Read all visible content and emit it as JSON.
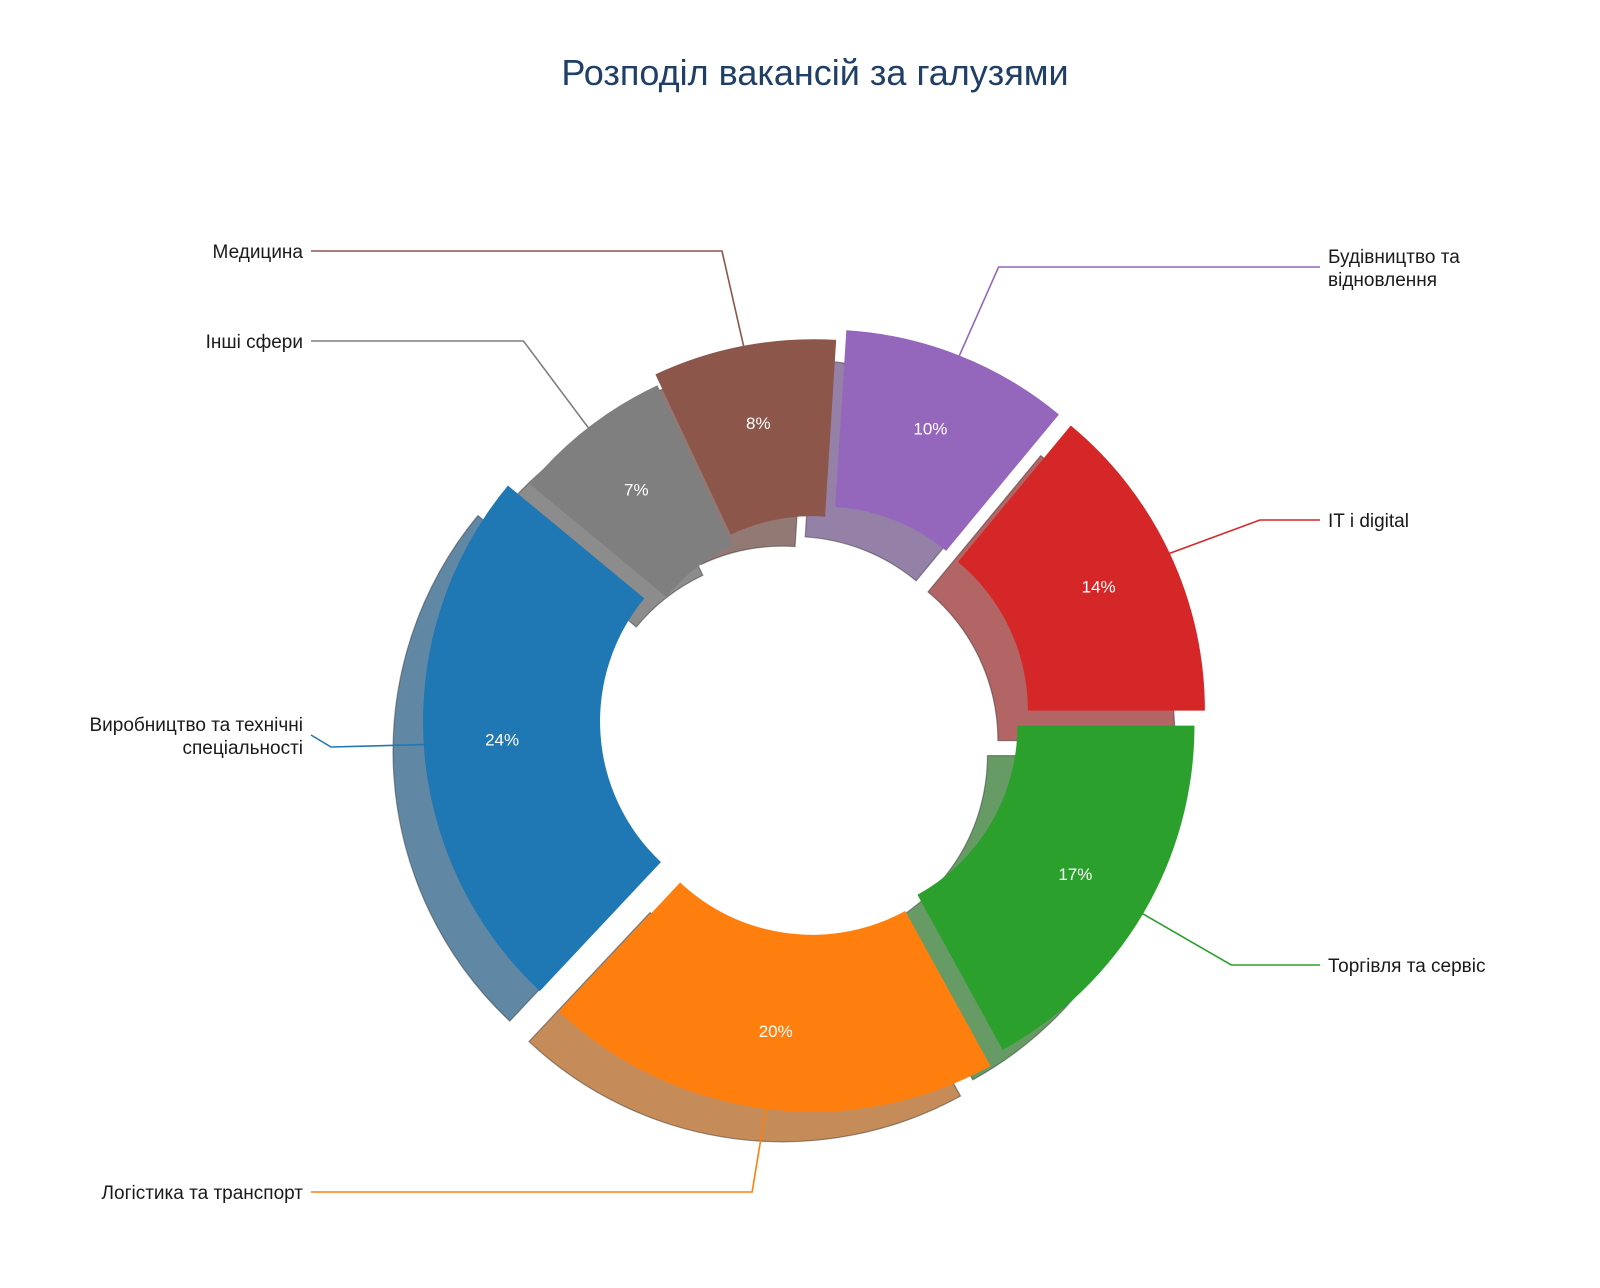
{
  "chart_data": {
    "type": "pie",
    "variant": "donut",
    "title": "Розподіл вакансій за галузями",
    "unit": "%",
    "start": "right (3 o'clock), clockwise",
    "slices": [
      {
        "label": "Торгівля та сервіс",
        "value": 17,
        "value_label": "17%",
        "color": "#2ca02c",
        "explode": 0.5
      },
      {
        "label": "Логістика та транспорт",
        "value": 20,
        "value_label": "20%",
        "color": "#ff7f0e",
        "explode": 1
      },
      {
        "label": "Виробництво та технічні спеціальності",
        "value": 24,
        "value_label": "24%",
        "color": "#1f77b4",
        "explode": 1
      },
      {
        "label": "Інші сфери",
        "value": 7,
        "value_label": "7%",
        "color": "#7f7f7f",
        "explode": 0
      },
      {
        "label": "Медицина",
        "value": 8,
        "value_label": "8%",
        "color": "#8c564b",
        "explode": 0.5
      },
      {
        "label": "Будівництво та відновлення",
        "value": 10,
        "value_label": "10%",
        "color": "#9467bd",
        "explode": 1
      },
      {
        "label": "IT і digital",
        "value": 14,
        "value_label": "14%",
        "color": "#d62728",
        "explode": 1
      }
    ]
  }
}
